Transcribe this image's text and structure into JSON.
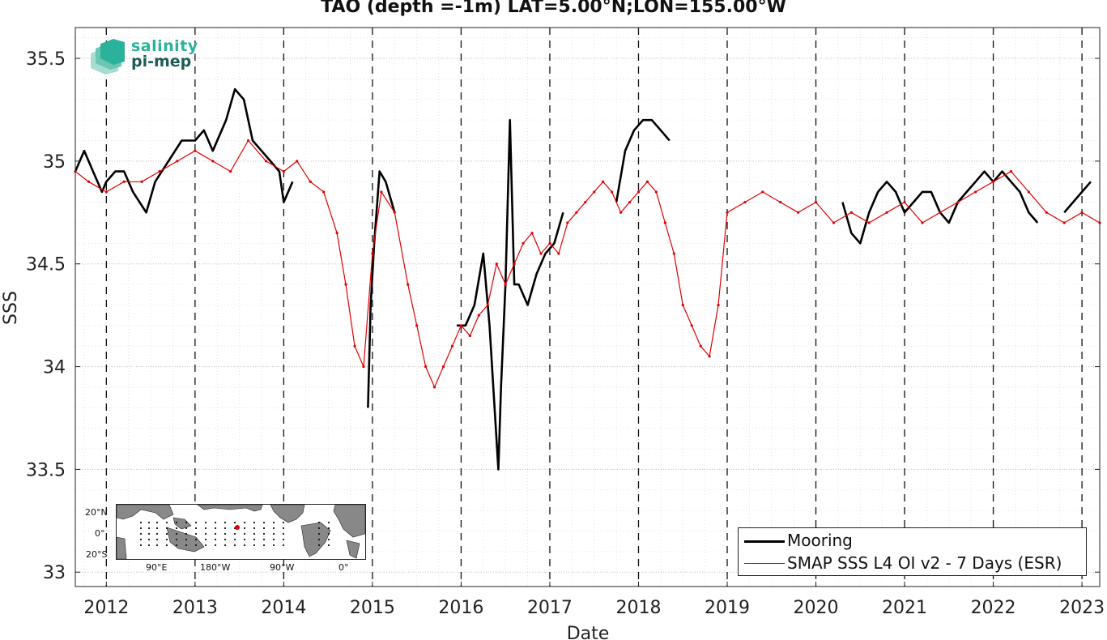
{
  "chart_data": {
    "type": "line",
    "title": "TAO (depth =-1m) LAT=5.00°N;LON=155.00°W",
    "xlabel": "Date",
    "ylabel": "SSS",
    "xlim": [
      2011.65,
      2023.2
    ],
    "ylim": [
      32.93,
      35.65
    ],
    "xticks": [
      2012,
      2013,
      2014,
      2015,
      2016,
      2017,
      2018,
      2019,
      2020,
      2021,
      2022,
      2023
    ],
    "xtick_labels": [
      "2012",
      "2013",
      "2014",
      "2015",
      "2016",
      "2017",
      "2018",
      "2019",
      "2020",
      "2021",
      "2022",
      "2023"
    ],
    "yticks": [
      33,
      33.5,
      34,
      34.5,
      35,
      35.5
    ],
    "ytick_labels": [
      "33",
      "33.5",
      "34",
      "34.5",
      "35",
      "35.5"
    ],
    "grid": true,
    "year_lines": "dashed",
    "legend_position": "bottom-right",
    "series": [
      {
        "name": "Mooring",
        "color": "#000000",
        "x": [
          2011.65,
          2011.75,
          2011.85,
          2011.95,
          2012.0,
          2012.1,
          2012.2,
          2012.3,
          2012.45,
          2012.55,
          2012.7,
          2012.85,
          2013.0,
          2013.1,
          2013.2,
          2013.35,
          2013.45,
          2013.55,
          2013.65,
          2013.75,
          2013.85,
          2013.95,
          2014.0,
          2014.1,
          null,
          2014.95,
          2014.98,
          2015.02,
          2015.08,
          2015.15,
          2015.25,
          null,
          2015.95,
          2016.05,
          2016.15,
          2016.25,
          2016.32,
          2016.42,
          2016.45,
          2016.5,
          2016.55,
          2016.6,
          2016.65,
          2016.75,
          2016.85,
          2016.95,
          2017.05,
          2017.15,
          null,
          2017.75,
          2017.85,
          2017.95,
          2018.05,
          2018.15,
          2018.25,
          2018.35,
          null,
          2020.3,
          2020.4,
          2020.5,
          2020.6,
          2020.7,
          2020.8,
          2020.9,
          2021.0,
          2021.1,
          2021.2,
          2021.3,
          2021.4,
          2021.5,
          2021.6,
          2021.7,
          2021.8,
          2021.9,
          2022.0,
          2022.1,
          2022.2,
          2022.3,
          2022.4,
          2022.5,
          null,
          2022.8,
          2022.9,
          2023.0,
          2023.1
        ],
        "y": [
          34.95,
          35.05,
          34.95,
          34.85,
          34.9,
          34.95,
          34.95,
          34.85,
          34.75,
          34.9,
          35.0,
          35.1,
          35.1,
          35.15,
          35.05,
          35.2,
          35.35,
          35.3,
          35.1,
          35.05,
          35.0,
          34.95,
          34.8,
          34.9,
          null,
          33.8,
          34.3,
          34.6,
          34.95,
          34.9,
          34.75,
          null,
          34.2,
          34.2,
          34.3,
          34.55,
          34.2,
          33.5,
          33.9,
          34.4,
          35.2,
          34.4,
          34.4,
          34.3,
          34.45,
          34.55,
          34.6,
          34.75,
          null,
          34.8,
          35.05,
          35.15,
          35.2,
          35.2,
          35.15,
          35.1,
          null,
          34.8,
          34.65,
          34.6,
          34.75,
          34.85,
          34.9,
          34.85,
          34.75,
          34.8,
          34.85,
          34.85,
          34.75,
          34.7,
          34.8,
          34.85,
          34.9,
          34.95,
          34.9,
          34.95,
          34.9,
          34.85,
          34.75,
          34.7,
          null,
          34.75,
          34.8,
          34.85,
          34.9
        ]
      },
      {
        "name": "SMAP SSS L4 OI v2 - 7 Days (ESR)",
        "color": "#e00000",
        "x": [
          2011.65,
          2011.8,
          2012.0,
          2012.2,
          2012.4,
          2012.6,
          2012.8,
          2013.0,
          2013.2,
          2013.4,
          2013.6,
          2013.8,
          2014.0,
          2014.15,
          2014.3,
          2014.45,
          2014.6,
          2014.7,
          2014.8,
          2014.9,
          2015.0,
          2015.1,
          2015.25,
          2015.4,
          2015.5,
          2015.6,
          2015.7,
          2015.8,
          2015.9,
          2016.0,
          2016.1,
          2016.2,
          2016.3,
          2016.4,
          2016.5,
          2016.6,
          2016.7,
          2016.8,
          2016.9,
          2017.0,
          2017.1,
          2017.2,
          2017.3,
          2017.4,
          2017.5,
          2017.6,
          2017.7,
          2017.8,
          2017.9,
          2018.0,
          2018.1,
          2018.2,
          2018.3,
          2018.4,
          2018.5,
          2018.6,
          2018.7,
          2018.8,
          2018.9,
          2019.0,
          2019.2,
          2019.4,
          2019.6,
          2019.8,
          2020.0,
          2020.2,
          2020.4,
          2020.6,
          2020.8,
          2021.0,
          2021.2,
          2021.4,
          2021.6,
          2021.8,
          2022.0,
          2022.2,
          2022.4,
          2022.6,
          2022.8,
          2023.0,
          2023.2
        ],
        "y": [
          34.95,
          34.9,
          34.85,
          34.9,
          34.9,
          34.95,
          35.0,
          35.05,
          35.0,
          34.95,
          35.1,
          35.0,
          34.95,
          35.0,
          34.9,
          34.85,
          34.65,
          34.4,
          34.1,
          34.0,
          34.55,
          34.85,
          34.75,
          34.4,
          34.2,
          34.0,
          33.9,
          34.0,
          34.1,
          34.2,
          34.15,
          34.25,
          34.3,
          34.5,
          34.4,
          34.5,
          34.6,
          34.65,
          34.55,
          34.6,
          34.55,
          34.7,
          34.75,
          34.8,
          34.85,
          34.9,
          34.85,
          34.75,
          34.8,
          34.85,
          34.9,
          34.85,
          34.7,
          34.55,
          34.3,
          34.2,
          34.1,
          34.05,
          34.3,
          34.75,
          34.8,
          34.85,
          34.8,
          34.75,
          34.8,
          34.7,
          34.75,
          34.7,
          34.75,
          34.8,
          34.7,
          34.75,
          34.8,
          34.85,
          34.9,
          34.95,
          34.85,
          34.75,
          34.7,
          34.75,
          34.7
        ]
      }
    ]
  },
  "logo": {
    "line1": "salinity",
    "line2": "pi-mep"
  },
  "inset_map": {
    "lat_labels": [
      "20°N",
      "0°",
      "20°S"
    ],
    "lon_labels": [
      "90°E",
      "180°W",
      "90°W",
      "0°"
    ],
    "ocean_color": "#ffffff",
    "land_color": "#888888",
    "marker_color": "#e00000"
  }
}
